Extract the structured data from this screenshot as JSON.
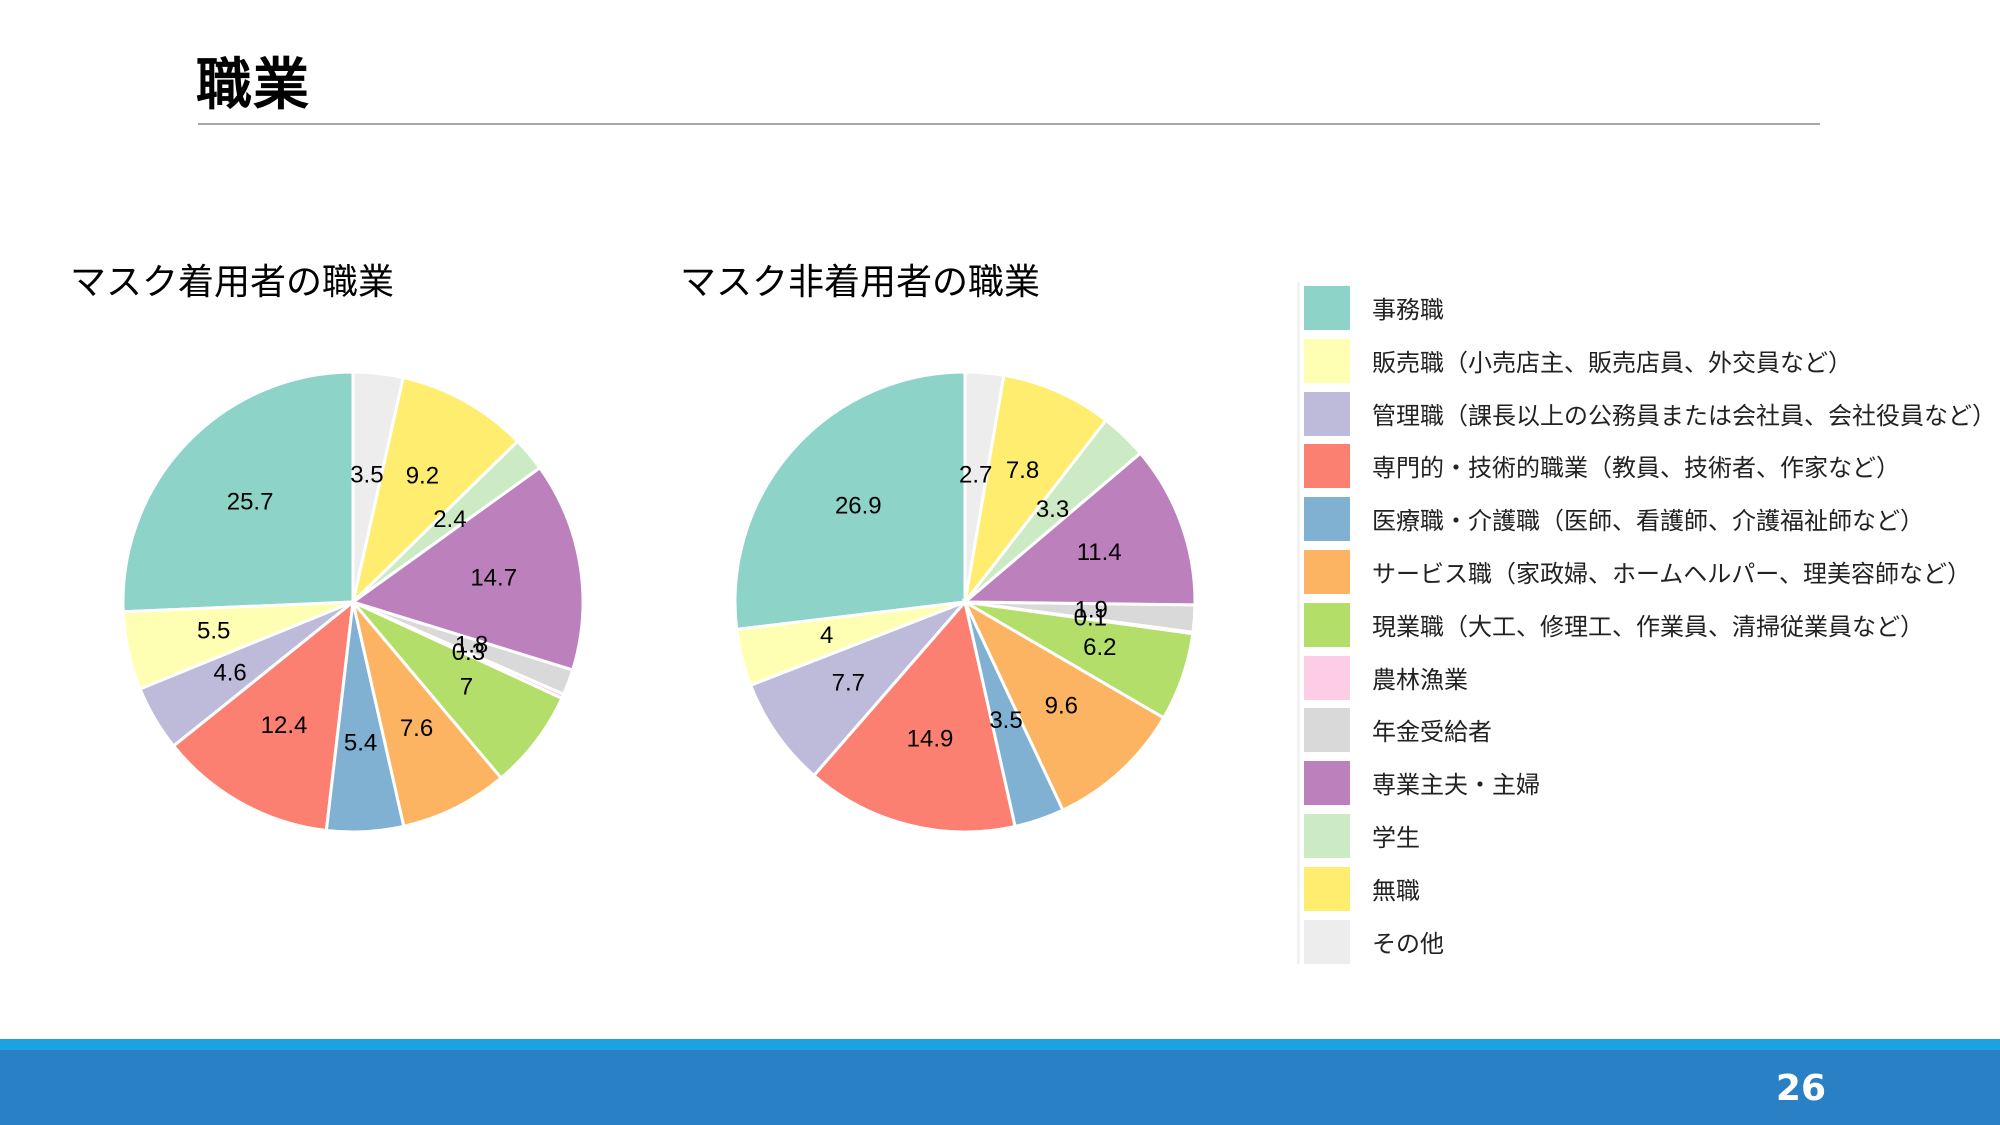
{
  "slide": {
    "title": "職業",
    "page_number": "26"
  },
  "colors": {
    "事務職": "#8dd3c7",
    "販売職": "#ffffb3",
    "管理職": "#bebada",
    "専門的・技術的職業": "#fb8072",
    "医療職・介護職": "#80b1d3",
    "サービス職": "#fdb462",
    "現業職": "#b3de69",
    "農林漁業": "#fccde5",
    "年金受給者": "#d9d9d9",
    "専業主夫・主婦": "#bc80bd",
    "学生": "#ccebc5",
    "無職": "#ffed6f",
    "その他": "#ededed",
    "footer_bar": "#2980c4",
    "footer_stripe": "#1aa3e0"
  },
  "legend": [
    {
      "label": "事務職",
      "key": "事務職"
    },
    {
      "label": "販売職（小売店主、販売店員、外交員など）",
      "key": "販売職"
    },
    {
      "label": "管理職（課長以上の公務員または会社員、会社役員など）",
      "key": "管理職"
    },
    {
      "label": "専門的・技術的職業（教員、技術者、作家など）",
      "key": "専門的・技術的職業"
    },
    {
      "label": "医療職・介護職（医師、看護師、介護福祉師など）",
      "key": "医療職・介護職"
    },
    {
      "label": "サービス職（家政婦、ホームヘルパー、理美容師など）",
      "key": "サービス職"
    },
    {
      "label": "現業職（大工、修理工、作業員、清掃従業員など）",
      "key": "現業職"
    },
    {
      "label": "農林漁業",
      "key": "農林漁業"
    },
    {
      "label": "年金受給者",
      "key": "年金受給者"
    },
    {
      "label": "専業主夫・主婦",
      "key": "専業主夫・主婦"
    },
    {
      "label": "学生",
      "key": "学生"
    },
    {
      "label": "無職",
      "key": "無職"
    },
    {
      "label": "その他",
      "key": "その他"
    }
  ],
  "chart_data": [
    {
      "type": "pie",
      "title": "マスク着用者の職業",
      "unit": "%",
      "legend_placement": "right",
      "start": "12 o'clock, counter-clockwise",
      "slices": [
        {
          "category": "事務職",
          "value": 25.7
        },
        {
          "category": "販売職",
          "value": 5.5
        },
        {
          "category": "管理職",
          "value": 4.6
        },
        {
          "category": "専門的・技術的職業",
          "value": 12.4
        },
        {
          "category": "医療職・介護職",
          "value": 5.4
        },
        {
          "category": "サービス職",
          "value": 7.6
        },
        {
          "category": "現業職",
          "value": 7
        },
        {
          "category": "農林漁業",
          "value": 0.3
        },
        {
          "category": "年金受給者",
          "value": 1.8
        },
        {
          "category": "専業主夫・主婦",
          "value": 14.7
        },
        {
          "category": "学生",
          "value": 2.4
        },
        {
          "category": "無職",
          "value": 9.2
        },
        {
          "category": "その他",
          "value": 3.5
        }
      ]
    },
    {
      "type": "pie",
      "title": "マスク非着用者の職業",
      "unit": "%",
      "legend_placement": "right",
      "start": "12 o'clock, counter-clockwise",
      "slices": [
        {
          "category": "事務職",
          "value": 26.9
        },
        {
          "category": "販売職",
          "value": 4
        },
        {
          "category": "管理職",
          "value": 7.7
        },
        {
          "category": "専門的・技術的職業",
          "value": 14.9
        },
        {
          "category": "医療職・介護職",
          "value": 3.5
        },
        {
          "category": "サービス職",
          "value": 9.6
        },
        {
          "category": "現業職",
          "value": 6.2
        },
        {
          "category": "農林漁業",
          "value": 0.1
        },
        {
          "category": "年金受給者",
          "value": 1.9
        },
        {
          "category": "専業主夫・主婦",
          "value": 11.4
        },
        {
          "category": "学生",
          "value": 3.3
        },
        {
          "category": "無職",
          "value": 7.8
        },
        {
          "category": "その他",
          "value": 2.7
        }
      ]
    }
  ]
}
